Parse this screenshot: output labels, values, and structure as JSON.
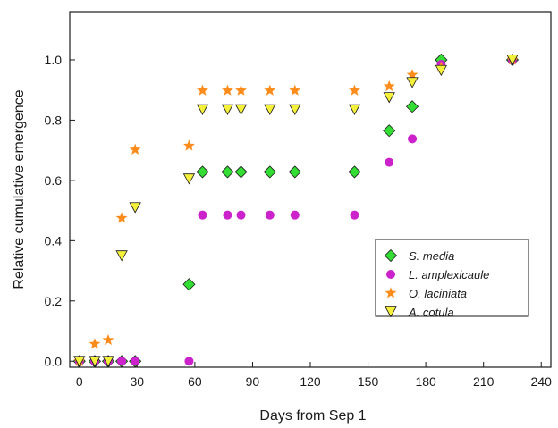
{
  "chart_data": {
    "type": "scatter",
    "title": "",
    "xlabel": "Days from Sep 1",
    "ylabel": "Relative cumulative emergence",
    "xlim": [
      -5,
      245
    ],
    "ylim": [
      -0.02,
      1.16
    ],
    "xticks": [
      0,
      30,
      60,
      90,
      120,
      150,
      180,
      210,
      240
    ],
    "yticks": [
      0.0,
      0.2,
      0.4,
      0.6,
      0.8,
      1.0
    ],
    "ytick_labels": [
      "0.0",
      "0.2",
      "0.4",
      "0.6",
      "0.8",
      "1.0"
    ],
    "grid": false,
    "legend_position": "center-right",
    "series": [
      {
        "name": "S. media",
        "marker": "diamond",
        "color": "#33dd33",
        "x": [
          0,
          8,
          15,
          22,
          29,
          57,
          64,
          77,
          84,
          99,
          112,
          143,
          161,
          173,
          188,
          225
        ],
        "y": [
          0.0,
          0.0,
          0.0,
          0.0,
          0.0,
          0.255,
          0.628,
          0.628,
          0.628,
          0.628,
          0.628,
          0.628,
          0.765,
          0.845,
          1.0,
          1.0
        ]
      },
      {
        "name": "L. amplexicaule",
        "marker": "circle",
        "color": "#cc22cc",
        "x": [
          0,
          8,
          15,
          22,
          29,
          57,
          64,
          77,
          84,
          99,
          112,
          143,
          161,
          173,
          188,
          225
        ],
        "y": [
          0.0,
          0.0,
          0.0,
          0.0,
          0.0,
          0.0,
          0.485,
          0.485,
          0.485,
          0.485,
          0.485,
          0.485,
          0.66,
          0.738,
          0.985,
          1.0
        ]
      },
      {
        "name": "O. laciniata",
        "marker": "star",
        "color": "#ff8c1a",
        "x": [
          0,
          8,
          15,
          22,
          29,
          57,
          64,
          77,
          84,
          99,
          112,
          143,
          161,
          173,
          188,
          225
        ],
        "y": [
          0.0,
          0.057,
          0.07,
          0.475,
          0.702,
          0.715,
          0.898,
          0.898,
          0.898,
          0.898,
          0.898,
          0.898,
          0.912,
          0.95,
          0.975,
          1.0
        ]
      },
      {
        "name": "A. cotula",
        "marker": "triangle-down",
        "color": "#f5f03a",
        "x": [
          0,
          8,
          15,
          22,
          29,
          57,
          64,
          77,
          84,
          99,
          112,
          143,
          161,
          173,
          188,
          225
        ],
        "y": [
          0.0,
          0.0,
          0.0,
          0.35,
          0.51,
          0.605,
          0.835,
          0.835,
          0.835,
          0.835,
          0.835,
          0.835,
          0.875,
          0.925,
          0.965,
          1.0
        ]
      }
    ]
  }
}
